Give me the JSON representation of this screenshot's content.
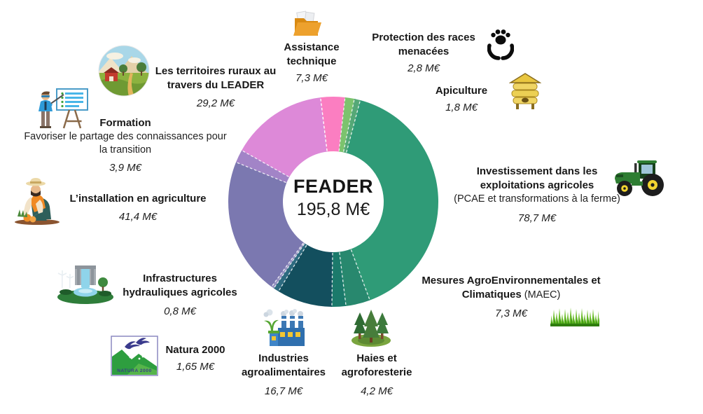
{
  "center": {
    "title": "FEADER",
    "total": "195,8 M€"
  },
  "chart_data": {
    "type": "donut",
    "title": "FEADER",
    "center_label": "FEADER",
    "center_value": "195,8 M€",
    "total": 195.8,
    "unit": "M€",
    "start_angle_deg": -7,
    "inner_radius_ratio": 0.48,
    "legend_position": "around",
    "segments": [
      {
        "label": "Assistance technique",
        "value": 7.3,
        "color": "#fb7ec1"
      },
      {
        "label": "Protection des races menacées",
        "value": 2.8,
        "color": "#7cc36e"
      },
      {
        "label": "Apiculture",
        "value": 1.8,
        "color": "#55a877"
      },
      {
        "label": "Investissement dans les exploitations agricoles",
        "value": 78.7,
        "color": "#2f9b77"
      },
      {
        "label": "Mesures AgroEnvironnementales et Climatiques",
        "value": 7.3,
        "color": "#28886e"
      },
      {
        "label": "Haies et agroforesterie",
        "value": 4.2,
        "color": "#1b7a6b"
      },
      {
        "label": "Industries agroalimentaires",
        "value": 16.7,
        "color": "#134f5e"
      },
      {
        "label": "Natura 2000",
        "value": 1.65,
        "color": "#2e6b80"
      },
      {
        "label": "Infrastructures hydrauliques agricoles",
        "value": 0.8,
        "color": "#9793c2"
      },
      {
        "label": "L’installation en agriculture",
        "value": 41.4,
        "color": "#7b78b0"
      },
      {
        "label": "Formation",
        "value": 3.9,
        "color": "#a284c7"
      },
      {
        "label": "Les territoires ruraux au travers du LEADER",
        "value": 29.2,
        "color": "#dd89d8"
      }
    ]
  },
  "callouts": {
    "assistance": {
      "title": "Assistance technique",
      "value": "7,3 M€",
      "icon": "folder-icon"
    },
    "protection": {
      "title": "Protection des races menacées",
      "value": "2,8 M€",
      "icon": "paw-hands-icon"
    },
    "apiculture": {
      "title": "Apiculture",
      "value": "1,8 M€",
      "icon": "beehive-icon"
    },
    "investissement": {
      "title": "Investissement dans les exploitations agricoles",
      "note": "(PCAE et transformations à la ferme)",
      "value": "78,7 M€",
      "icon": "tractor-icon"
    },
    "maec": {
      "title_line1": "Mesures AgroEnvironnementales et",
      "title_line2": "Climatiques",
      "note": " (MAEC)",
      "value": "7,3 M€",
      "icon": "grass-icon"
    },
    "haies": {
      "title": "Haies et agroforesterie",
      "value": "4,2 M€",
      "icon": "trees-icon"
    },
    "industries": {
      "title": "Industries agroalimentaires",
      "value": "16,7 M€",
      "icon": "factory-icon"
    },
    "natura": {
      "title": "Natura 2000",
      "value": "1,65 M€",
      "icon": "natura-2000-logo",
      "logo_text": "NATURA 2000"
    },
    "infrastructures": {
      "title": "Infrastructures hydrauliques agricoles",
      "value": "0,8 M€",
      "icon": "dam-icon"
    },
    "installation": {
      "title": "L’installation en agriculture",
      "value": "41,4 M€",
      "icon": "farmer-icon"
    },
    "formation": {
      "title": "Formation",
      "note": "Favoriser le partage des connaissances pour la transition",
      "value": "3,9 M€",
      "icon": "teacher-icon"
    },
    "leader": {
      "title": "Les territoires ruraux au travers du LEADER",
      "value": "29,2 M€",
      "icon": "rural-landscape-icon"
    }
  }
}
